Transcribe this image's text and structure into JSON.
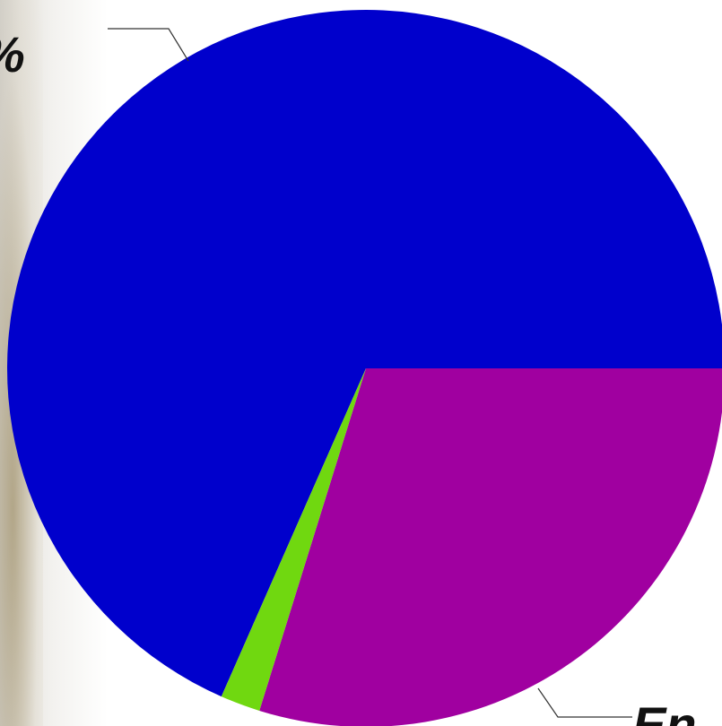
{
  "chart_data": {
    "type": "pie",
    "title": "",
    "slices": [
      {
        "value": 68.4,
        "color": "#0000cc"
      },
      {
        "value": 29.8,
        "color": "#a000a0"
      },
      {
        "value": 1.8,
        "color": "#70d810"
      }
    ],
    "labels": [
      {
        "text": "%"
      },
      {
        "text": "En"
      }
    ],
    "legend": "none"
  }
}
